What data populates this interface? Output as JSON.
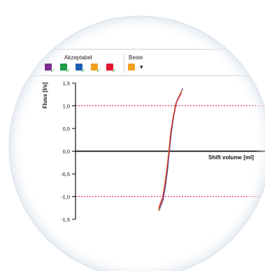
{
  "toolbar": {
    "group_accepted_label": "Akzeptabel",
    "group_best_label": "Beste",
    "check_glyph": "✓",
    "dropdown_glyph": "▼",
    "swatches": [
      {
        "color": "#7b2d8e",
        "icon": "check-icon"
      },
      {
        "color": "#1e9b4a",
        "icon": "check-icon"
      },
      {
        "color": "#1c5fb0",
        "icon": "check-icon"
      },
      {
        "color": "#f0a01e",
        "icon": "check-icon"
      },
      {
        "color": "#e2182f",
        "icon": "check-icon"
      }
    ],
    "best_swatch": {
      "color": "#f0a01e",
      "icon": "chevron-down-icon"
    },
    "check_color": "#3aaa3a"
  },
  "chart_data": {
    "type": "line",
    "title": "",
    "ylabel": "Fluss [l/s]",
    "xlabel": "Shift volume [ml]",
    "ylim": [
      -1.5,
      1.5
    ],
    "yticks": [
      "1,5",
      "1,0",
      "0,5",
      "0,0",
      "-0,5",
      "-1,0",
      "-1,5"
    ],
    "ytick_values": [
      1.5,
      1.0,
      0.5,
      0.0,
      -0.5,
      -1.0,
      -1.5
    ],
    "reference_lines": [
      1.0,
      -1.0
    ],
    "reference_line_color": "#e2182f",
    "grid": false,
    "series": [
      {
        "color": "#7b2d8e",
        "x": [
          -0.72,
          -0.44,
          -0.3,
          -0.14,
          0.0,
          0.14,
          0.3,
          0.5,
          0.96
        ],
        "y": [
          -1.3,
          -1.08,
          -0.82,
          -0.45,
          0.02,
          0.46,
          0.8,
          1.08,
          1.38
        ]
      },
      {
        "color": "#1e9b4a",
        "x": [
          -0.75,
          -0.48,
          -0.34,
          -0.18,
          -0.02,
          0.12,
          0.3,
          0.48,
          0.92
        ],
        "y": [
          -1.28,
          -1.06,
          -0.8,
          -0.44,
          0.0,
          0.44,
          0.78,
          1.06,
          1.34
        ]
      },
      {
        "color": "#1c5fb0",
        "x": [
          -0.7,
          -0.46,
          -0.28,
          -0.12,
          0.02,
          0.16,
          0.34,
          0.52,
          0.88
        ],
        "y": [
          -1.26,
          -1.04,
          -0.78,
          -0.42,
          0.02,
          0.42,
          0.8,
          1.08,
          1.3
        ]
      },
      {
        "color": "#f0a01e",
        "x": [
          -0.78,
          -0.5,
          -0.36,
          -0.2,
          -0.04,
          0.1,
          0.28,
          0.46,
          0.9
        ],
        "y": [
          -1.3,
          -1.06,
          -0.8,
          -0.46,
          -0.02,
          0.42,
          0.76,
          1.04,
          1.32
        ]
      },
      {
        "color": "#e2182f",
        "x": [
          -0.74,
          -0.47,
          -0.32,
          -0.16,
          -0.01,
          0.13,
          0.32,
          0.5,
          0.86
        ],
        "y": [
          -1.24,
          -1.02,
          -0.78,
          -0.42,
          0.0,
          0.44,
          0.78,
          1.06,
          1.28
        ]
      }
    ],
    "xlim": [
      -6.0,
      6.0
    ]
  }
}
